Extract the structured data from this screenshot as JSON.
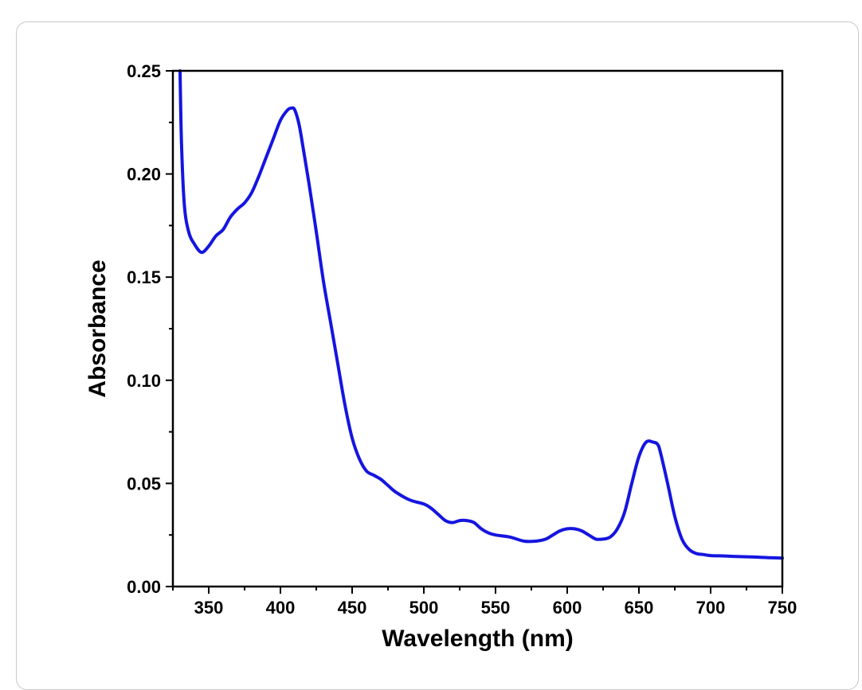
{
  "chart_data": {
    "type": "line",
    "title": "",
    "xlabel": "Wavelength (nm)",
    "ylabel": "Absorbance",
    "xlim": [
      325,
      750
    ],
    "ylim": [
      0,
      0.25
    ],
    "x_ticks": [
      350,
      400,
      450,
      500,
      550,
      600,
      650,
      700,
      750
    ],
    "y_ticks": [
      0.0,
      0.05,
      0.1,
      0.15,
      0.2,
      0.25
    ],
    "x_tick_labels": [
      "350",
      "400",
      "450",
      "500",
      "550",
      "600",
      "650",
      "700",
      "750"
    ],
    "y_tick_labels": [
      "0.00",
      "0.05",
      "0.10",
      "0.15",
      "0.20",
      "0.25"
    ],
    "grid": false,
    "legend": "none",
    "line_color": "#1515e0",
    "series": [
      {
        "x": [
          330,
          331,
          333,
          336,
          340,
          345,
          350,
          355,
          360,
          365,
          370,
          375,
          380,
          385,
          390,
          395,
          400,
          405,
          408,
          410,
          413,
          416,
          420,
          425,
          430,
          435,
          440,
          445,
          450,
          455,
          460,
          465,
          470,
          475,
          480,
          490,
          500,
          505,
          510,
          515,
          520,
          525,
          530,
          535,
          540,
          545,
          550,
          560,
          570,
          578,
          585,
          590,
          595,
          600,
          605,
          610,
          615,
          620,
          625,
          630,
          635,
          640,
          645,
          650,
          655,
          660,
          663,
          665,
          670,
          675,
          680,
          685,
          690,
          695,
          700,
          710,
          720,
          730,
          740,
          750
        ],
        "y": [
          0.25,
          0.215,
          0.185,
          0.172,
          0.166,
          0.162,
          0.165,
          0.17,
          0.173,
          0.179,
          0.183,
          0.186,
          0.191,
          0.199,
          0.208,
          0.217,
          0.226,
          0.231,
          0.232,
          0.231,
          0.224,
          0.212,
          0.195,
          0.172,
          0.148,
          0.128,
          0.108,
          0.088,
          0.072,
          0.062,
          0.056,
          0.054,
          0.052,
          0.049,
          0.046,
          0.042,
          0.04,
          0.038,
          0.035,
          0.032,
          0.031,
          0.032,
          0.032,
          0.031,
          0.028,
          0.026,
          0.025,
          0.024,
          0.022,
          0.022,
          0.023,
          0.025,
          0.027,
          0.028,
          0.028,
          0.027,
          0.025,
          0.023,
          0.023,
          0.024,
          0.028,
          0.036,
          0.05,
          0.063,
          0.07,
          0.07,
          0.069,
          0.065,
          0.05,
          0.034,
          0.023,
          0.018,
          0.016,
          0.0155,
          0.015,
          0.0148,
          0.0145,
          0.0143,
          0.014,
          0.0138
        ]
      }
    ]
  }
}
